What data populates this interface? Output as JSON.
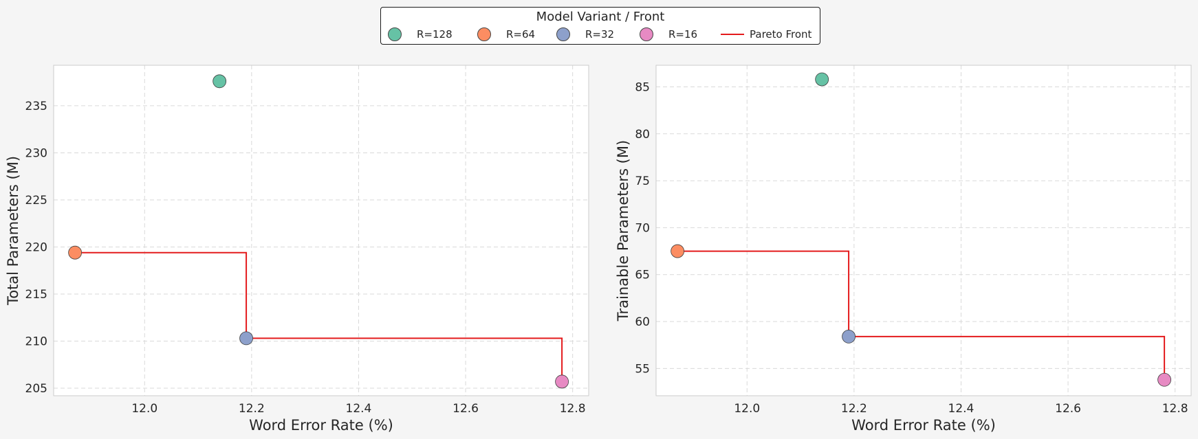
{
  "legend": {
    "title": "Model Variant / Front",
    "items": [
      {
        "label": "R=128",
        "color": "#66c2a5",
        "kind": "marker"
      },
      {
        "label": "R=64",
        "color": "#fc8d62",
        "kind": "marker"
      },
      {
        "label": "R=32",
        "color": "#8da0cb",
        "kind": "marker"
      },
      {
        "label": "R=16",
        "color": "#e78ac3",
        "kind": "marker"
      },
      {
        "label": "Pareto Front",
        "color": "#e41a1c",
        "kind": "line"
      }
    ]
  },
  "chart_data": [
    {
      "type": "scatter",
      "xlabel": "Word Error Rate (%)",
      "ylabel": "Total Parameters (M)",
      "xlim": [
        11.83,
        12.83
      ],
      "ylim": [
        204.2,
        239.3
      ],
      "xticks": [
        12.0,
        12.2,
        12.4,
        12.6,
        12.8
      ],
      "yticks": [
        205,
        210,
        215,
        220,
        225,
        230,
        235
      ],
      "grid": true,
      "points": [
        {
          "variant": "R=128",
          "x": 12.14,
          "y": 237.6
        },
        {
          "variant": "R=64",
          "x": 11.87,
          "y": 219.4
        },
        {
          "variant": "R=32",
          "x": 12.19,
          "y": 210.3
        },
        {
          "variant": "R=16",
          "x": 12.78,
          "y": 205.7
        }
      ],
      "pareto_front": [
        {
          "x": 11.87,
          "y": 219.4
        },
        {
          "x": 12.19,
          "y": 210.3
        },
        {
          "x": 12.78,
          "y": 205.7
        }
      ]
    },
    {
      "type": "scatter",
      "xlabel": "Word Error Rate (%)",
      "ylabel": "Trainable Parameters (M)",
      "xlim": [
        11.83,
        12.83
      ],
      "ylim": [
        52.1,
        87.3
      ],
      "xticks": [
        12.0,
        12.2,
        12.4,
        12.6,
        12.8
      ],
      "yticks": [
        55,
        60,
        65,
        70,
        75,
        80,
        85
      ],
      "grid": true,
      "points": [
        {
          "variant": "R=128",
          "x": 12.14,
          "y": 85.8
        },
        {
          "variant": "R=64",
          "x": 11.87,
          "y": 67.5
        },
        {
          "variant": "R=32",
          "x": 12.19,
          "y": 58.4
        },
        {
          "variant": "R=16",
          "x": 12.78,
          "y": 53.8
        }
      ],
      "pareto_front": [
        {
          "x": 11.87,
          "y": 67.5
        },
        {
          "x": 12.19,
          "y": 58.4
        },
        {
          "x": 12.78,
          "y": 53.8
        }
      ]
    }
  ]
}
